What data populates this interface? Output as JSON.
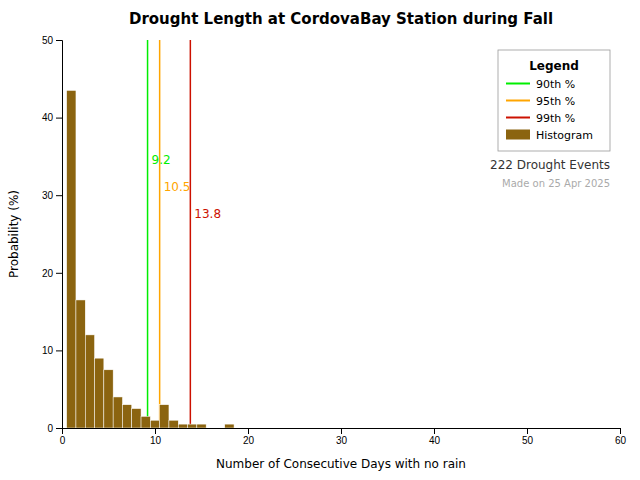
{
  "chart_data": {
    "type": "bar",
    "title": "Drought Length at CordovaBay Station during Fall",
    "x_label": "Number of Consecutive Days with no rain",
    "y_label": "Probability (%)",
    "xlim": [
      0,
      60
    ],
    "ylim": [
      0,
      50
    ],
    "xticks": [
      0,
      10,
      20,
      30,
      40,
      50,
      60
    ],
    "yticks": [
      0,
      10,
      20,
      30,
      40,
      50
    ],
    "grid": false,
    "legend": "upper right",
    "legend_title": "Legend",
    "series": [
      {
        "name": "90th %",
        "type": "vline",
        "color": "#00ee00",
        "x": [
          9.2
        ],
        "data_labels": true
      },
      {
        "name": "95th %",
        "type": "vline",
        "color": "#FFA500",
        "x": [
          10.5
        ],
        "data_labels": true
      },
      {
        "name": "99th %",
        "type": "vline",
        "color": "#cc1100",
        "x": [
          13.8
        ],
        "data_labels": true
      },
      {
        "name": "Histogram",
        "type": "bar",
        "color": "#8B6410",
        "x": [
          1,
          2,
          3,
          4,
          5,
          6,
          7,
          8,
          9,
          10,
          11,
          12,
          13,
          14,
          15,
          18
        ],
        "values": [
          43.5,
          16.5,
          12.0,
          9.0,
          7.5,
          4.0,
          3.0,
          2.5,
          1.5,
          1.0,
          3.0,
          1.0,
          0.5,
          0.5,
          0.5,
          0.5
        ]
      }
    ],
    "annotations": [
      {
        "text": "222 Drought Events"
      },
      {
        "text": "Made on 25 Apr 2025",
        "color": "#aaaaaa"
      }
    ]
  }
}
